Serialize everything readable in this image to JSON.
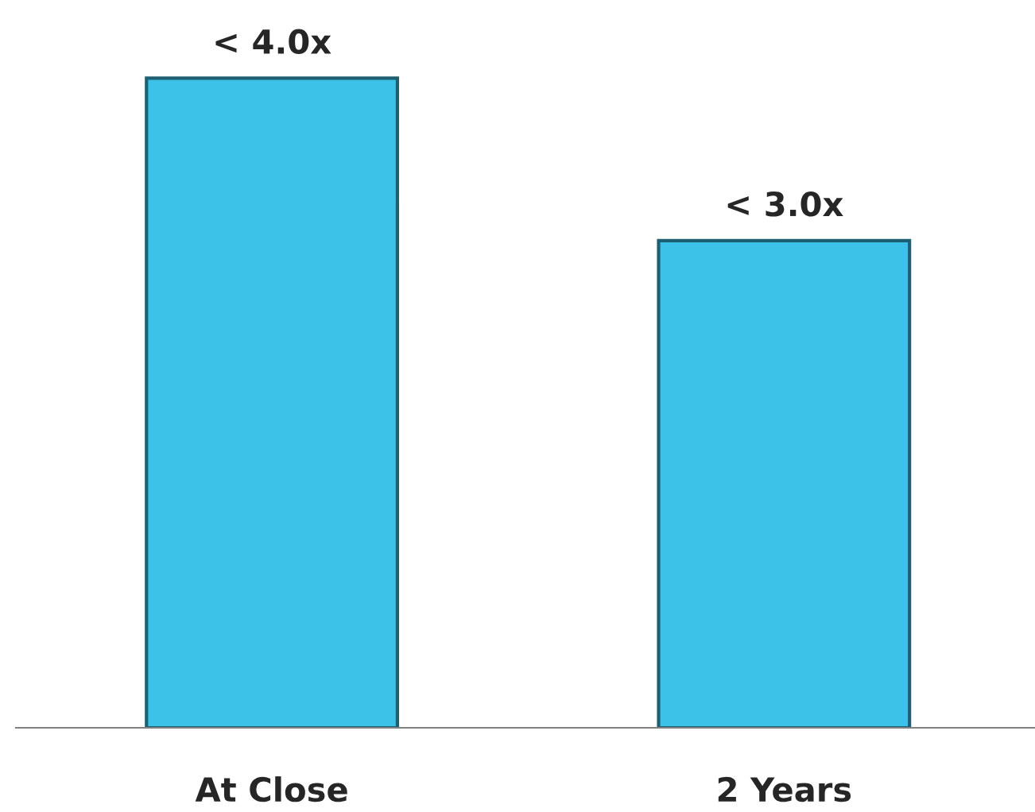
{
  "chart_data": {
    "type": "bar",
    "categories": [
      "At Close",
      "2 Years"
    ],
    "values": [
      4.0,
      3.0
    ],
    "value_labels": [
      "< 4.0x",
      "< 3.0x"
    ],
    "color": "#3cc2e8",
    "grid": false,
    "legend": false
  }
}
